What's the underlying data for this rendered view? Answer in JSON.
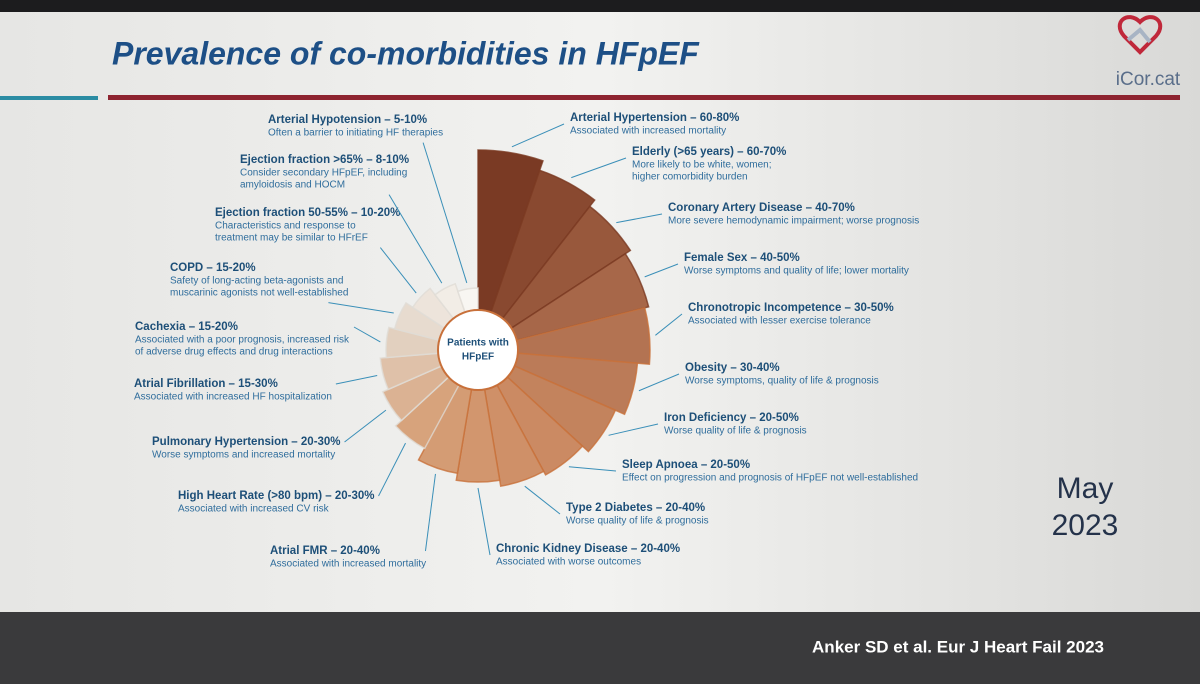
{
  "header": {
    "title": "Prevalence of co-morbidities in HFpEF",
    "logo": "iCor.cat"
  },
  "center_label": [
    "Patients with",
    "HFpEF"
  ],
  "items": [
    {
      "title": "Arterial Hypertension – 60-80%",
      "notes": [
        "Associated with increased mortality"
      ]
    },
    {
      "title": "Elderly (>65 years) – 60-70%",
      "notes": [
        "More likely to be white, women;",
        "higher comorbidity burden"
      ]
    },
    {
      "title": "Coronary Artery Disease – 40-70%",
      "notes": [
        "More severe hemodynamic impairment; worse prognosis"
      ]
    },
    {
      "title": "Female Sex – 40-50%",
      "notes": [
        "Worse symptoms and quality of life; lower mortality"
      ]
    },
    {
      "title": "Chronotropic Incompetence – 30-50%",
      "notes": [
        "Associated with lesser exercise tolerance"
      ]
    },
    {
      "title": "Obesity – 30-40%",
      "notes": [
        "Worse symptoms, quality of life & prognosis"
      ]
    },
    {
      "title": "Iron Deficiency – 20-50%",
      "notes": [
        "Worse quality of life & prognosis"
      ]
    },
    {
      "title": "Sleep Apnoea – 20-50%",
      "notes": [
        "Effect on progression and prognosis of HFpEF not well-established"
      ]
    },
    {
      "title": "Type 2 Diabetes – 20-40%",
      "notes": [
        "Worse quality of life & prognosis"
      ]
    },
    {
      "title": "Chronic Kidney Disease – 20-40%",
      "notes": [
        "Associated with worse outcomes"
      ]
    },
    {
      "title": "Atrial FMR – 20-40%",
      "notes": [
        "Associated with increased mortality"
      ]
    },
    {
      "title": "High Heart Rate (>80 bpm) – 20-30%",
      "notes": [
        "Associated with increased CV risk"
      ]
    },
    {
      "title": "Pulmonary Hypertension – 20-30%",
      "notes": [
        "Worse symptoms and increased mortality"
      ]
    },
    {
      "title": "Atrial Fibrillation – 15-30%",
      "notes": [
        "Associated with increased HF hospitalization"
      ]
    },
    {
      "title": "Cachexia – 15-20%",
      "notes": [
        "Associated with a poor prognosis, increased risk",
        "of adverse drug effects and drug interactions"
      ]
    },
    {
      "title": "COPD – 15-20%",
      "notes": [
        "Safety of long-acting beta-agonists and",
        "muscarinic agonists not well-established"
      ]
    },
    {
      "title": "Ejection fraction 50-55% – 10-20%",
      "notes": [
        "Characteristics and response to",
        "treatment may be similar to HFrEF"
      ]
    },
    {
      "title": "Ejection fraction >65% – 8-10%",
      "notes": [
        "Consider secondary HFpEF, including",
        "amyloidosis and HOCM"
      ]
    },
    {
      "title": "Arterial Hypotension – 5-10%",
      "notes": [
        "Often a barrier to initiating HF therapies"
      ]
    }
  ],
  "date": [
    "May",
    "2023"
  ],
  "citation": "Anker SD et al. Eur J Heart Fail 2023"
}
